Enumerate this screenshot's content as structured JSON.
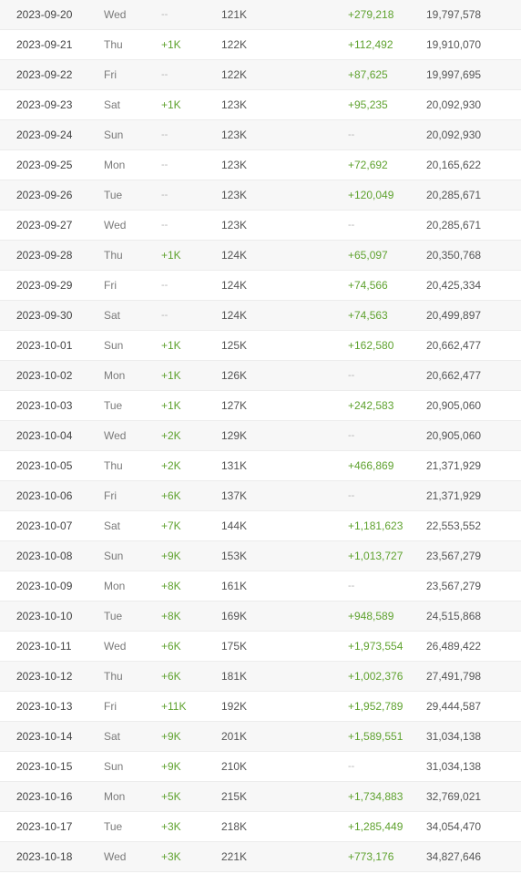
{
  "table": {
    "rows": [
      {
        "date": "2023-09-20",
        "day": "Wed",
        "subs_change": "--",
        "subs_total": "121K",
        "views_change": "+279,218",
        "views_total": "19,797,578"
      },
      {
        "date": "2023-09-21",
        "day": "Thu",
        "subs_change": "+1K",
        "subs_total": "122K",
        "views_change": "+112,492",
        "views_total": "19,910,070"
      },
      {
        "date": "2023-09-22",
        "day": "Fri",
        "subs_change": "--",
        "subs_total": "122K",
        "views_change": "+87,625",
        "views_total": "19,997,695"
      },
      {
        "date": "2023-09-23",
        "day": "Sat",
        "subs_change": "+1K",
        "subs_total": "123K",
        "views_change": "+95,235",
        "views_total": "20,092,930"
      },
      {
        "date": "2023-09-24",
        "day": "Sun",
        "subs_change": "--",
        "subs_total": "123K",
        "views_change": "--",
        "views_total": "20,092,930"
      },
      {
        "date": "2023-09-25",
        "day": "Mon",
        "subs_change": "--",
        "subs_total": "123K",
        "views_change": "+72,692",
        "views_total": "20,165,622"
      },
      {
        "date": "2023-09-26",
        "day": "Tue",
        "subs_change": "--",
        "subs_total": "123K",
        "views_change": "+120,049",
        "views_total": "20,285,671"
      },
      {
        "date": "2023-09-27",
        "day": "Wed",
        "subs_change": "--",
        "subs_total": "123K",
        "views_change": "--",
        "views_total": "20,285,671"
      },
      {
        "date": "2023-09-28",
        "day": "Thu",
        "subs_change": "+1K",
        "subs_total": "124K",
        "views_change": "+65,097",
        "views_total": "20,350,768"
      },
      {
        "date": "2023-09-29",
        "day": "Fri",
        "subs_change": "--",
        "subs_total": "124K",
        "views_change": "+74,566",
        "views_total": "20,425,334"
      },
      {
        "date": "2023-09-30",
        "day": "Sat",
        "subs_change": "--",
        "subs_total": "124K",
        "views_change": "+74,563",
        "views_total": "20,499,897"
      },
      {
        "date": "2023-10-01",
        "day": "Sun",
        "subs_change": "+1K",
        "subs_total": "125K",
        "views_change": "+162,580",
        "views_total": "20,662,477"
      },
      {
        "date": "2023-10-02",
        "day": "Mon",
        "subs_change": "+1K",
        "subs_total": "126K",
        "views_change": "--",
        "views_total": "20,662,477"
      },
      {
        "date": "2023-10-03",
        "day": "Tue",
        "subs_change": "+1K",
        "subs_total": "127K",
        "views_change": "+242,583",
        "views_total": "20,905,060"
      },
      {
        "date": "2023-10-04",
        "day": "Wed",
        "subs_change": "+2K",
        "subs_total": "129K",
        "views_change": "--",
        "views_total": "20,905,060"
      },
      {
        "date": "2023-10-05",
        "day": "Thu",
        "subs_change": "+2K",
        "subs_total": "131K",
        "views_change": "+466,869",
        "views_total": "21,371,929"
      },
      {
        "date": "2023-10-06",
        "day": "Fri",
        "subs_change": "+6K",
        "subs_total": "137K",
        "views_change": "--",
        "views_total": "21,371,929"
      },
      {
        "date": "2023-10-07",
        "day": "Sat",
        "subs_change": "+7K",
        "subs_total": "144K",
        "views_change": "+1,181,623",
        "views_total": "22,553,552"
      },
      {
        "date": "2023-10-08",
        "day": "Sun",
        "subs_change": "+9K",
        "subs_total": "153K",
        "views_change": "+1,013,727",
        "views_total": "23,567,279"
      },
      {
        "date": "2023-10-09",
        "day": "Mon",
        "subs_change": "+8K",
        "subs_total": "161K",
        "views_change": "--",
        "views_total": "23,567,279"
      },
      {
        "date": "2023-10-10",
        "day": "Tue",
        "subs_change": "+8K",
        "subs_total": "169K",
        "views_change": "+948,589",
        "views_total": "24,515,868"
      },
      {
        "date": "2023-10-11",
        "day": "Wed",
        "subs_change": "+6K",
        "subs_total": "175K",
        "views_change": "+1,973,554",
        "views_total": "26,489,422"
      },
      {
        "date": "2023-10-12",
        "day": "Thu",
        "subs_change": "+6K",
        "subs_total": "181K",
        "views_change": "+1,002,376",
        "views_total": "27,491,798"
      },
      {
        "date": "2023-10-13",
        "day": "Fri",
        "subs_change": "+11K",
        "subs_total": "192K",
        "views_change": "+1,952,789",
        "views_total": "29,444,587"
      },
      {
        "date": "2023-10-14",
        "day": "Sat",
        "subs_change": "+9K",
        "subs_total": "201K",
        "views_change": "+1,589,551",
        "views_total": "31,034,138"
      },
      {
        "date": "2023-10-15",
        "day": "Sun",
        "subs_change": "+9K",
        "subs_total": "210K",
        "views_change": "--",
        "views_total": "31,034,138"
      },
      {
        "date": "2023-10-16",
        "day": "Mon",
        "subs_change": "+5K",
        "subs_total": "215K",
        "views_change": "+1,734,883",
        "views_total": "32,769,021"
      },
      {
        "date": "2023-10-17",
        "day": "Tue",
        "subs_change": "+3K",
        "subs_total": "218K",
        "views_change": "+1,285,449",
        "views_total": "34,054,470"
      },
      {
        "date": "2023-10-18",
        "day": "Wed",
        "subs_change": "+3K",
        "subs_total": "221K",
        "views_change": "+773,176",
        "views_total": "34,827,646"
      }
    ]
  },
  "colors": {
    "positive": "#5fa22f",
    "none": "#b5b5b5",
    "row_alt": "#f7f7f7"
  }
}
